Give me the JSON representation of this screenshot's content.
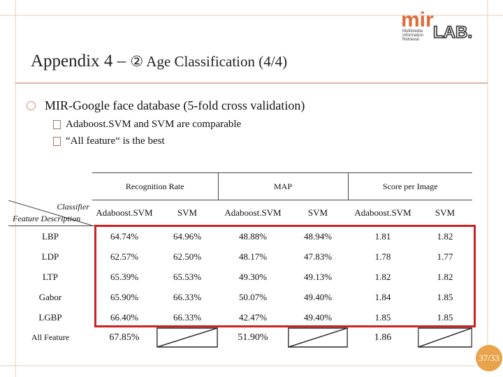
{
  "slide": {
    "title": "Appendix 4 – ",
    "subtitle": "② Age Classification (4/4)",
    "bullet": {
      "bold_part": "MIR-Google face database",
      "rest": " (5-fold cross validation)"
    },
    "sub_bullets": [
      "Adaboost.SVM and SVM are comparable",
      "“All feature“ is the best"
    ],
    "page_number": "37/33",
    "logo_text": "MIR LAB",
    "logo_small": [
      "Multimedia",
      "Information",
      "Retrieval"
    ]
  },
  "table": {
    "groups": [
      "Recognition Rate",
      "MAP",
      "Score per Image"
    ],
    "corner": {
      "top": "Classifier",
      "bottom": "Feature Description"
    },
    "subheaders": [
      "Adaboost.SVM",
      "SVM",
      "Adaboost.SVM",
      "SVM",
      "Adaboost.SVM",
      "SVM"
    ],
    "rows": [
      {
        "feature": "LBP",
        "values": [
          "64.74%",
          "64.96%",
          "48.88%",
          "48.94%",
          "1.81",
          "1.82"
        ]
      },
      {
        "feature": "LDP",
        "values": [
          "62.57%",
          "62.50%",
          "48.17%",
          "47.83%",
          "1.78",
          "1.77"
        ]
      },
      {
        "feature": "LTP",
        "values": [
          "65.39%",
          "65.53%",
          "49.30%",
          "49.13%",
          "1.82",
          "1.82"
        ]
      },
      {
        "feature": "Gabor",
        "values": [
          "65.90%",
          "66.33%",
          "50.07%",
          "49.40%",
          "1.84",
          "1.85"
        ]
      },
      {
        "feature": "LGBP",
        "values": [
          "66.40%",
          "66.33%",
          "42.47%",
          "49.40%",
          "1.85",
          "1.85"
        ]
      }
    ],
    "last_row": {
      "feature": "All Feature",
      "values": [
        "67.85%",
        "51.90%",
        "1.86"
      ]
    }
  },
  "colors": {
    "highlight": "#cc2222",
    "accent": "#e9a34b",
    "frame": "#d9b7a3"
  }
}
